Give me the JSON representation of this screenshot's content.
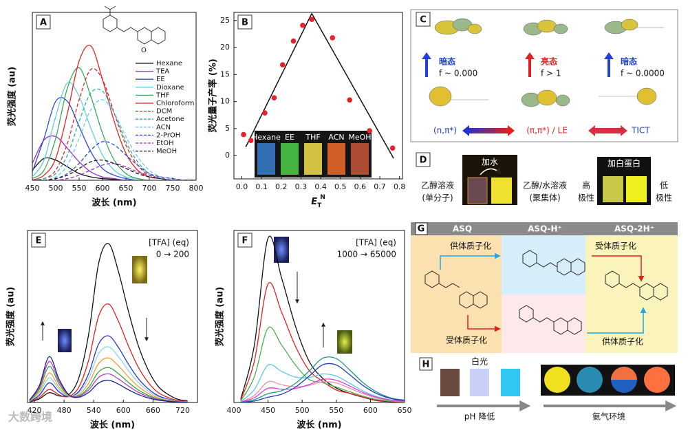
{
  "chart_data": [
    {
      "type": "line",
      "label": "A",
      "xlabel": "波长 (nm)",
      "ylabel": "荧光强度 (au)",
      "legend": "right",
      "x": [
        450,
        475,
        500,
        525,
        550,
        575,
        600,
        625,
        650,
        675,
        700,
        725,
        750,
        775,
        800
      ],
      "xlim": [
        450,
        800
      ],
      "xticks": [
        450,
        500,
        550,
        600,
        650,
        700,
        750,
        800
      ],
      "ylim": [
        0,
        100
      ],
      "series": [
        {
          "name": "Hexane",
          "color": "#111111",
          "dashed": false,
          "values": [
            6,
            13,
            12,
            8,
            4,
            2,
            1,
            0.5,
            0,
            0,
            0,
            0,
            0,
            0,
            0
          ]
        },
        {
          "name": "TEA",
          "color": "#9b30c8",
          "dashed": false,
          "values": [
            10,
            24,
            26,
            19,
            11,
            5,
            2,
            1,
            0,
            0,
            0,
            0,
            0,
            0,
            0
          ]
        },
        {
          "name": "EE",
          "color": "#2b4bd6",
          "dashed": false,
          "values": [
            5,
            25,
            47,
            47,
            32,
            17,
            7,
            3,
            1,
            0,
            0,
            0,
            0,
            0,
            0
          ]
        },
        {
          "name": "Dioxane",
          "color": "#62cfe0",
          "dashed": false,
          "values": [
            2,
            12,
            38,
            58,
            50,
            31,
            15,
            6,
            2,
            1,
            0,
            0,
            0,
            0,
            0
          ]
        },
        {
          "name": "THF",
          "color": "#3aa85a",
          "dashed": false,
          "values": [
            1,
            6,
            25,
            55,
            67,
            50,
            28,
            12,
            4,
            1,
            0,
            0,
            0,
            0,
            0
          ]
        },
        {
          "name": "Chloroform",
          "color": "#e02424",
          "dashed": false,
          "values": [
            0,
            3,
            13,
            40,
            71,
            80,
            60,
            35,
            16,
            6,
            2,
            1,
            0,
            0,
            0
          ]
        },
        {
          "name": "DCM",
          "color": "#e02424",
          "dashed": true,
          "values": [
            0,
            1,
            6,
            22,
            48,
            66,
            60,
            40,
            21,
            9,
            3,
            1,
            0,
            0,
            0
          ]
        },
        {
          "name": "Acetone",
          "color": "#2ab0a0",
          "dashed": true,
          "values": [
            0,
            1,
            4,
            15,
            35,
            52,
            53,
            40,
            23,
            11,
            4,
            1,
            0,
            0,
            0
          ]
        },
        {
          "name": "ACN",
          "color": "#6ec6ef",
          "dashed": true,
          "values": [
            0,
            0,
            2,
            9,
            25,
            42,
            48,
            40,
            26,
            14,
            6,
            2,
            1,
            0,
            0
          ]
        },
        {
          "name": "2-PrOH",
          "color": "#2b4bd6",
          "dashed": true,
          "values": [
            0,
            0,
            1,
            4,
            10,
            18,
            23,
            21,
            15,
            9,
            4,
            2,
            1,
            0,
            0
          ]
        },
        {
          "name": "EtOH",
          "color": "#9b30c8",
          "dashed": true,
          "values": [
            0,
            0,
            0,
            1,
            3,
            6,
            9,
            10,
            8,
            5,
            3,
            1,
            0,
            0,
            0
          ]
        },
        {
          "name": "MeOH",
          "color": "#111111",
          "dashed": true,
          "values": [
            0,
            0,
            1,
            3,
            7,
            11,
            12,
            10,
            7,
            4,
            2,
            1,
            0,
            0,
            0
          ]
        }
      ]
    },
    {
      "type": "scatter",
      "label": "B",
      "xlabel": {
        "base": "E",
        "sub": "T",
        "sup": "N"
      },
      "ylabel": "荧光量子产率 (%)",
      "color": "#e8202a",
      "line_color": "#111111",
      "x": [
        0.009,
        0.046,
        0.117,
        0.164,
        0.207,
        0.262,
        0.309,
        0.355,
        0.46,
        0.547,
        0.648,
        0.765
      ],
      "values": [
        3.9,
        2.8,
        7.9,
        10.7,
        16.8,
        21.2,
        24.1,
        25.2,
        21.8,
        10.3,
        4.6,
        1.4
      ],
      "fit_lines": [
        {
          "x": [
            0.02,
            0.355
          ],
          "values": [
            1.6,
            26.3
          ]
        },
        {
          "x": [
            0.355,
            0.77
          ],
          "values": [
            26.3,
            -0.5
          ]
        }
      ],
      "xlim": [
        -0.04,
        0.815
      ],
      "xticks": [
        {
          "value": 0,
          "label": "0.0"
        },
        {
          "value": 0.1,
          "label": "0.1"
        },
        {
          "value": 0.2,
          "label": "0.2"
        },
        {
          "value": 0.3,
          "label": "0.3"
        },
        {
          "value": 0.4,
          "label": "0.4"
        },
        {
          "value": 0.5,
          "label": "0.5"
        },
        {
          "value": 0.6,
          "label": "0.6"
        },
        {
          "value": 0.7,
          "label": "0.7"
        },
        {
          "value": 0.8,
          "label": "0.8"
        }
      ],
      "ylim": [
        -4.3,
        26.5
      ],
      "yticks": [
        0,
        5,
        10,
        15,
        20,
        25
      ],
      "inset": {
        "labels": [
          "Hexane",
          "EE",
          "THF",
          "ACN",
          "MeOH"
        ],
        "colors": [
          "#3a7fd0",
          "#4fd04a",
          "#f5e04a",
          "#f26a2a",
          "#c8553a"
        ]
      }
    },
    {
      "type": "line",
      "label": "E",
      "xlabel": "波长 (nm)",
      "ylabel": "荧光强度 (au)",
      "annotations": [
        "[TFA] (eq)",
        "0 → 200"
      ],
      "x": [
        410,
        430,
        450,
        470,
        490,
        510,
        530,
        550,
        570,
        590,
        610,
        630,
        650,
        670,
        690,
        710,
        730
      ],
      "xlim": [
        406,
        750
      ],
      "xticks": [
        420,
        480,
        540,
        600,
        660,
        720
      ],
      "ylim": [
        0,
        105
      ],
      "series": [
        {
          "color": "#111111",
          "values": [
            0.3,
            2.2,
            6,
            4,
            4.9,
            15.2,
            42.1,
            85,
            97,
            80,
            56,
            35,
            20,
            10,
            5,
            2,
            1
          ]
        },
        {
          "color": "#e02020",
          "values": [
            0.4,
            3,
            8,
            4.6,
            3.7,
            9.5,
            26.1,
            52.7,
            60.1,
            49.6,
            34.7,
            21.7,
            12.4,
            6.2,
            3.1,
            1.2,
            0.6
          ]
        },
        {
          "color": "#2233cc",
          "values": [
            0.6,
            4.4,
            12,
            6.4,
            3.5,
            6.8,
            17.8,
            35.7,
            40.7,
            33.6,
            23.5,
            14.7,
            8.4,
            4.2,
            2.1,
            0.8,
            0.4
          ]
        },
        {
          "color": "#8fd3ef",
          "values": [
            0.8,
            5.6,
            15,
            7.9,
            3.7,
            5.9,
            14.8,
            29.8,
            34,
            28,
            19.6,
            12.3,
            7,
            3.5,
            1.8,
            0.7,
            0.4
          ]
        },
        {
          "color": "#f39c34",
          "values": [
            0.9,
            6.7,
            18,
            9.3,
            3.8,
            4.9,
            11.9,
            23.8,
            27.2,
            22.4,
            15.7,
            9.8,
            5.6,
            2.8,
            1.4,
            0.6,
            0.3
          ]
        },
        {
          "color": "#3aa03a",
          "values": [
            1.1,
            8.1,
            22,
            11.2,
            4.2,
            4.2,
            9.3,
            18.7,
            21.3,
            17.6,
            12.3,
            7.7,
            4.4,
            2.2,
            1.1,
            0.4,
            0.2
          ]
        },
        {
          "color": "#b040c0",
          "values": [
            1.3,
            9.3,
            25,
            12.7,
            4.5,
            3.7,
            7.8,
            15.3,
            17.5,
            14.4,
            10.1,
            6.3,
            3.6,
            1.8,
            0.9,
            0.4,
            0.2
          ]
        },
        {
          "color": "#1a237e",
          "values": [
            1.4,
            10.4,
            28,
            14.1,
            4.6,
            3.2,
            6.2,
            11.9,
            13.6,
            11.2,
            7.8,
            4.9,
            2.8,
            1.4,
            0.7,
            0.3,
            0.1
          ]
        }
      ]
    },
    {
      "type": "line",
      "label": "F",
      "xlabel": "波长 (nm)",
      "ylabel": "荧光强度 (au)",
      "annotations": [
        "[TFA] (eq)",
        "1000 → 65000"
      ],
      "x": [
        410,
        430,
        450,
        470,
        490,
        510,
        530,
        550,
        570,
        590,
        610,
        630,
        650
      ],
      "xlim": [
        400,
        650
      ],
      "xticks": [
        400,
        450,
        500,
        550,
        600,
        650
      ],
      "ylim": [
        0,
        105
      ],
      "series": [
        {
          "color": "#111111",
          "values": [
            2,
            35.1,
            100.3,
            75.8,
            46.8,
            25.3,
            14.8,
            8.8,
            5.5,
            3.1,
            1.1,
            0.5,
            0.3
          ]
        },
        {
          "color": "#e02020",
          "values": [
            1.4,
            25.3,
            72.3,
            54.9,
            34.5,
            19.7,
            12.9,
            7.6,
            5.6,
            3.2,
            1.3,
            0.6,
            0.3
          ]
        },
        {
          "color": "#4caf50",
          "values": [
            0.9,
            15.8,
            45.4,
            35,
            23,
            14.1,
            12.1,
            9.4,
            6.5,
            3.8,
            1.8,
            0.8,
            0.4
          ]
        },
        {
          "color": "#5bc8e8",
          "values": [
            0.4,
            7.9,
            22.8,
            18.9,
            15.5,
            15.2,
            17.4,
            16.1,
            11.6,
            6.9,
            3.5,
            1.6,
            0.8
          ]
        },
        {
          "color": "#f48fb1",
          "values": [
            0.2,
            4.3,
            12.6,
            10.8,
            9.6,
            10.4,
            12.6,
            11.9,
            8.6,
            5.2,
            2.6,
            1.2,
            0.6
          ]
        },
        {
          "color": "#d63fd6",
          "values": [
            0.2,
            2.9,
            8.7,
            8.1,
            8.5,
            10.9,
            14.1,
            13.6,
            10,
            6,
            3.1,
            1.4,
            0.7
          ]
        },
        {
          "color": "#1a9a8a",
          "values": [
            0.1,
            1.7,
            5.4,
            7.2,
            11.6,
            19.1,
            27,
            26.8,
            19.7,
            11.8,
            6.2,
            2.8,
            1.4
          ]
        },
        {
          "color": "#1f3fb0",
          "values": [
            0,
            0.9,
            3.2,
            5.1,
            9.3,
            16,
            23,
            22.9,
            16.8,
            10.1,
            5.3,
            2.4,
            1.2
          ]
        }
      ]
    }
  ],
  "panel_c": {
    "label": "C",
    "states": [
      {
        "name": "暗态",
        "f": "f ~ 0.000"
      },
      {
        "name": "亮态",
        "f": "f > 1"
      },
      {
        "name": "暗态",
        "f": "f ~ 0.0000"
      }
    ],
    "transitions": [
      "(n,π*)",
      "(π,π*) / LE",
      "TICT"
    ]
  },
  "panel_d": {
    "label": "D",
    "left": [
      "乙醇溶液",
      "(单分子)"
    ],
    "add1": "加水",
    "middle": [
      "乙醇/水溶液",
      "(聚集体)"
    ],
    "high": [
      "高",
      "极性"
    ],
    "add2": "加白蛋白",
    "low": [
      "低",
      "极性"
    ]
  },
  "panel_g": {
    "label": "G",
    "headers": [
      "ASQ",
      "ASQ-H⁺",
      "ASQ-2H⁺"
    ],
    "steps": [
      "供体质子化",
      "受体质子化",
      "受体质子化",
      "供体质子化"
    ]
  },
  "panel_h": {
    "label": "H",
    "white": "白光",
    "ph": "pH 降低",
    "ammonia": "氨气环境"
  },
  "watermark": "大数跨境"
}
